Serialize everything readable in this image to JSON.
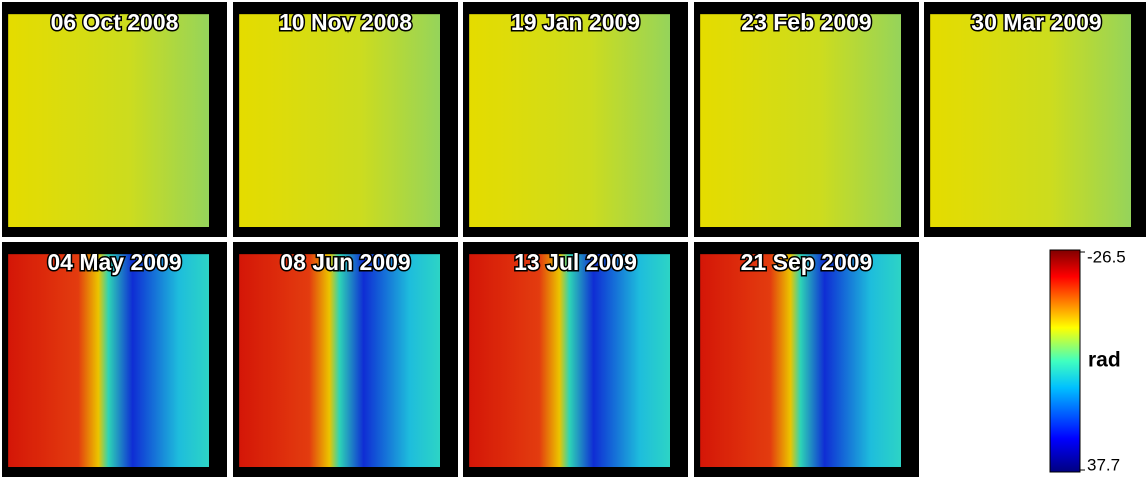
{
  "panels": [
    {
      "title": "06 Oct 2008"
    },
    {
      "title": "10 Nov 2008"
    },
    {
      "title": "19 Jan 2009"
    },
    {
      "title": "23 Feb 2009"
    },
    {
      "title": "30 Mar 2009"
    },
    {
      "title": "04 May 2009"
    },
    {
      "title": "08 Jun 2009"
    },
    {
      "title": "13 Jul 2009"
    },
    {
      "title": "21 Sep 2009"
    }
  ],
  "colorbar": {
    "ticks": [
      {
        "value": -26.5,
        "label": "-26.5"
      },
      {
        "value": 37.7,
        "label": "37.7"
      }
    ],
    "unit": "rad"
  }
}
